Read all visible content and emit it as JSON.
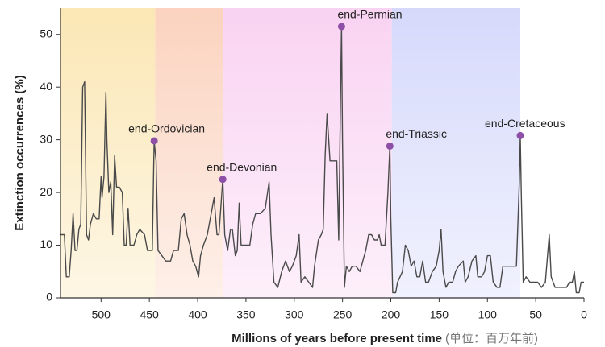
{
  "chart_data": {
    "type": "line",
    "xlabel": "Millions of years before present time",
    "xlabel_note": "(单位：百万年前)",
    "ylabel": "Extinction occurrences (%)",
    "xlim": [
      542,
      0
    ],
    "ylim": [
      0,
      55
    ],
    "xticks": [
      500,
      450,
      400,
      350,
      300,
      250,
      200,
      150,
      100,
      50,
      0
    ],
    "yticks": [
      0,
      10,
      20,
      30,
      40,
      50
    ],
    "color": "#4a4a4a",
    "marker_color": "#8e4fa6",
    "periods": [
      {
        "start": 542,
        "end": 444,
        "color": "#fbe7b5"
      },
      {
        "start": 444,
        "end": 374,
        "color": "#fbd3bf"
      },
      {
        "start": 374,
        "end": 199,
        "color": "#f9d3f2"
      },
      {
        "start": 199,
        "end": 66,
        "color": "#d6d9fb"
      }
    ],
    "x": [
      542,
      538,
      536,
      533,
      531,
      529,
      527,
      525,
      523,
      521,
      519,
      517,
      515,
      513,
      511,
      508,
      505,
      502,
      500,
      499,
      497,
      495,
      494,
      492,
      490,
      488,
      486,
      484,
      481,
      478,
      476,
      474,
      472,
      470,
      466,
      463,
      460,
      455,
      452,
      447,
      445,
      443,
      441,
      437,
      433,
      428,
      425,
      420,
      417,
      414,
      411,
      408,
      405,
      402,
      399,
      397,
      394,
      390,
      385,
      383,
      380,
      378,
      374,
      372,
      369,
      366,
      364,
      361,
      359,
      357,
      355,
      351,
      346,
      343,
      340,
      335,
      330,
      326,
      324,
      321,
      317,
      313,
      309,
      305,
      302,
      298,
      295,
      293,
      289,
      285,
      281,
      279,
      275,
      272,
      270,
      268,
      266,
      263,
      261,
      258,
      256,
      254,
      252,
      251,
      250,
      248,
      246,
      243,
      240,
      236,
      232,
      229,
      226,
      223,
      220,
      217,
      214,
      212,
      210,
      206,
      203,
      201,
      200,
      198,
      195,
      193,
      188,
      185,
      182,
      179,
      176,
      173,
      170,
      167,
      164,
      161,
      157,
      153,
      150,
      148,
      146,
      143,
      140,
      136,
      133,
      130,
      125,
      123,
      120,
      116,
      112,
      110,
      106,
      103,
      100,
      97,
      94,
      90,
      87,
      84,
      80,
      77,
      72,
      70,
      67,
      66,
      65,
      63,
      60,
      56,
      53,
      48,
      44,
      40,
      36,
      34,
      30,
      26,
      22,
      18,
      15,
      12,
      10,
      8,
      5,
      3,
      0
    ],
    "values": [
      12,
      12,
      4,
      4,
      9,
      16,
      9,
      9,
      13,
      14,
      40,
      41,
      12,
      11,
      14,
      16,
      15,
      15,
      23,
      19,
      23,
      39,
      30,
      20,
      22,
      12,
      27,
      21,
      21,
      20,
      10,
      10,
      17,
      10,
      10,
      12,
      13,
      12,
      9,
      9,
      29.8,
      26,
      9,
      8,
      7,
      7,
      9,
      9,
      15,
      16,
      12,
      10,
      7,
      6,
      4,
      8,
      10,
      12,
      17,
      19,
      12,
      12,
      22.5,
      12,
      9,
      13,
      13,
      8,
      9,
      18,
      10,
      10,
      10,
      14,
      16,
      16,
      17,
      22,
      12,
      3,
      2,
      5,
      7,
      5,
      6,
      8,
      12,
      3,
      4,
      3,
      2,
      6,
      11,
      12,
      13,
      27,
      35,
      26,
      26,
      26,
      26,
      11,
      40,
      51.5,
      30,
      2,
      6,
      5,
      6,
      6,
      5,
      7,
      9,
      12,
      12,
      11,
      11,
      12,
      10,
      10,
      20,
      28.8,
      15,
      1,
      1,
      3,
      5,
      10,
      9,
      6,
      7,
      4,
      4,
      7,
      3,
      3,
      5,
      6,
      9,
      13,
      5,
      2,
      3,
      3,
      5,
      6,
      7,
      3,
      4,
      7,
      8,
      4,
      4,
      5,
      8,
      8,
      3,
      2,
      2,
      6,
      6,
      6,
      6,
      6,
      22,
      30.8,
      20,
      3,
      4,
      3,
      3,
      3,
      2,
      3,
      12,
      4,
      2,
      2,
      2,
      2,
      3,
      3,
      5,
      1,
      1,
      3,
      3
    ],
    "annotations": [
      {
        "text": "end-Ordovician",
        "x": 445,
        "y": 29.8
      },
      {
        "text": "end-Devonian",
        "x": 374,
        "y": 22.5
      },
      {
        "text": "end-Permian",
        "x": 251,
        "y": 51.5
      },
      {
        "text": "end-Triassic",
        "x": 201,
        "y": 28.8
      },
      {
        "text": "end-Cretaceous",
        "x": 66,
        "y": 30.8
      }
    ]
  }
}
